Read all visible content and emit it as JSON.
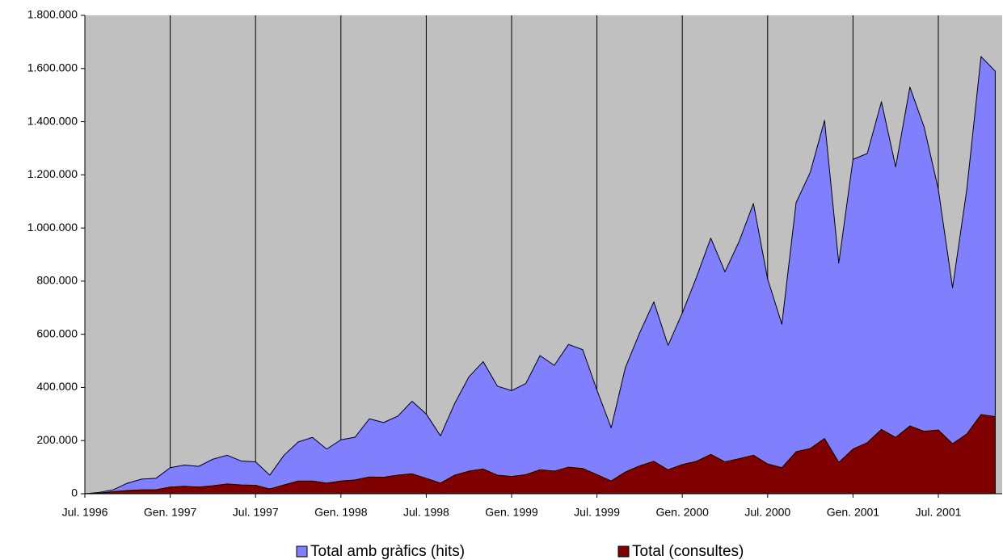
{
  "chart_data": {
    "type": "area",
    "categories": [
      "Jul. 1996",
      null,
      null,
      null,
      null,
      null,
      "Gen. 1997",
      null,
      null,
      null,
      null,
      null,
      "Jul. 1997",
      null,
      null,
      null,
      null,
      null,
      "Gen. 1998",
      null,
      null,
      null,
      null,
      null,
      "Jul. 1998",
      null,
      null,
      null,
      null,
      null,
      "Gen. 1999",
      null,
      null,
      null,
      null,
      null,
      "Jul. 1999",
      null,
      null,
      null,
      null,
      null,
      "Gen. 2000",
      null,
      null,
      null,
      null,
      null,
      "Jul. 2000",
      null,
      null,
      null,
      null,
      null,
      "Gen. 2001",
      null,
      null,
      null,
      null,
      null,
      "Jul. 2001",
      null,
      null,
      null,
      null
    ],
    "series": [
      {
        "name": "Total amb gràfics (hits)",
        "color": "#8080ff",
        "values": [
          0,
          5000,
          15000,
          40000,
          55000,
          58000,
          98000,
          108000,
          103000,
          130000,
          145000,
          123000,
          120000,
          70000,
          145000,
          195000,
          212000,
          168000,
          203000,
          213000,
          282000,
          268000,
          292000,
          348000,
          300000,
          218000,
          340000,
          440000,
          497000,
          405000,
          388000,
          415000,
          520000,
          483000,
          562000,
          542000,
          390000,
          248000,
          475000,
          605000,
          722000,
          558000,
          680000,
          815000,
          962000,
          835000,
          950000,
          1092000,
          808000,
          638000,
          1095000,
          1210000,
          1405000,
          868000,
          1258000,
          1280000,
          1475000,
          1230000,
          1530000,
          1380000,
          1145000,
          775000,
          1145000,
          1645000,
          1590000
        ]
      },
      {
        "name": "Total (consultes)",
        "color": "#800000",
        "values": [
          0,
          2000,
          8000,
          12000,
          15000,
          15000,
          25000,
          28000,
          25000,
          30000,
          37000,
          33000,
          32000,
          18000,
          33000,
          48000,
          48000,
          40000,
          48000,
          52000,
          63000,
          62000,
          70000,
          75000,
          58000,
          40000,
          70000,
          85000,
          93000,
          70000,
          65000,
          72000,
          90000,
          85000,
          100000,
          95000,
          72000,
          48000,
          82000,
          105000,
          122000,
          90000,
          110000,
          122000,
          148000,
          120000,
          132000,
          145000,
          112000,
          98000,
          158000,
          170000,
          208000,
          118000,
          168000,
          192000,
          242000,
          212000,
          255000,
          235000,
          240000,
          188000,
          225000,
          298000,
          290000
        ]
      }
    ],
    "ylim": [
      0,
      1800000
    ],
    "yticks": [
      0,
      {
        "value": 200000,
        "label": "200.000"
      },
      {
        "value": 400000,
        "label": "400.000"
      },
      {
        "value": 600000,
        "label": "600.000"
      },
      {
        "value": 800000,
        "label": "800.000"
      },
      {
        "value": 1000000,
        "label": "1.000.000"
      },
      {
        "value": 1200000,
        "label": "1.200.000"
      },
      {
        "value": 1400000,
        "label": "1.400.000"
      },
      {
        "value": 1600000,
        "label": "1.600.000"
      },
      {
        "value": 1800000,
        "label": "1.800.000"
      }
    ],
    "grid": true,
    "background": "#c0c0c0",
    "legend": "bottom"
  }
}
